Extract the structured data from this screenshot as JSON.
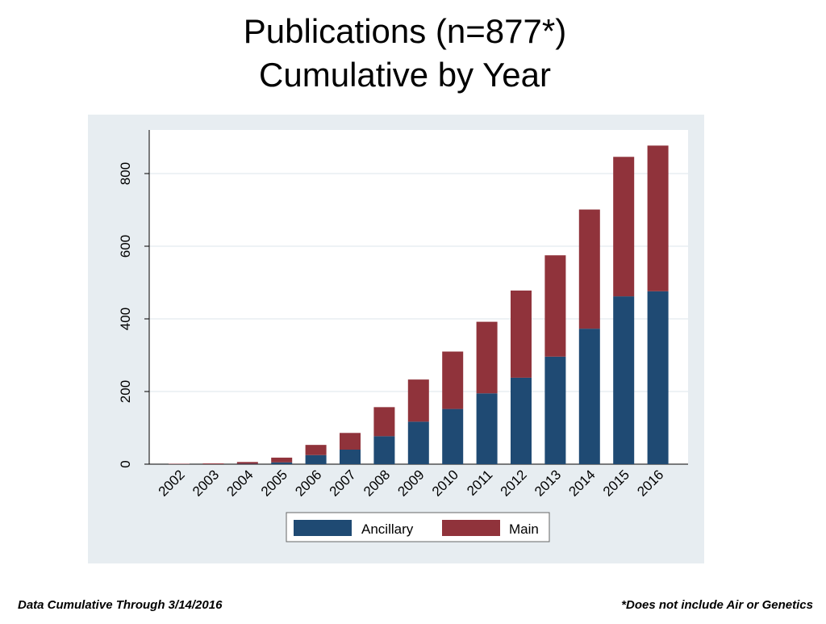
{
  "title": {
    "line1": "Publications (n=877*)",
    "line2": "Cumulative by Year"
  },
  "footer": {
    "left": "Data Cumulative Through 3/14/2016",
    "right": "*Does not include Air or Genetics"
  },
  "colors": {
    "ancillary": "#1f4a73",
    "main": "#90333b",
    "panel_bg": "#e7edf1",
    "plot_bg": "#ffffff",
    "grid": "#e9eef2"
  },
  "chart_data": {
    "type": "bar",
    "stacked": true,
    "categories": [
      "2002",
      "2003",
      "2004",
      "2005",
      "2006",
      "2007",
      "2008",
      "2009",
      "2010",
      "2011",
      "2012",
      "2013",
      "2014",
      "2015",
      "2016"
    ],
    "series": [
      {
        "name": "Ancillary",
        "values": [
          0,
          0,
          1,
          5,
          25,
          40,
          77,
          117,
          152,
          195,
          238,
          296,
          373,
          462,
          476
        ]
      },
      {
        "name": "Main",
        "values": [
          1,
          2,
          5,
          13,
          28,
          46,
          80,
          116,
          158,
          197,
          240,
          279,
          328,
          384,
          401
        ]
      }
    ],
    "yticks": [
      0,
      200,
      400,
      600,
      800
    ],
    "ylim": [
      0,
      920
    ],
    "xlabel": "",
    "ylabel": "",
    "grid": true,
    "legend": "bottom"
  }
}
